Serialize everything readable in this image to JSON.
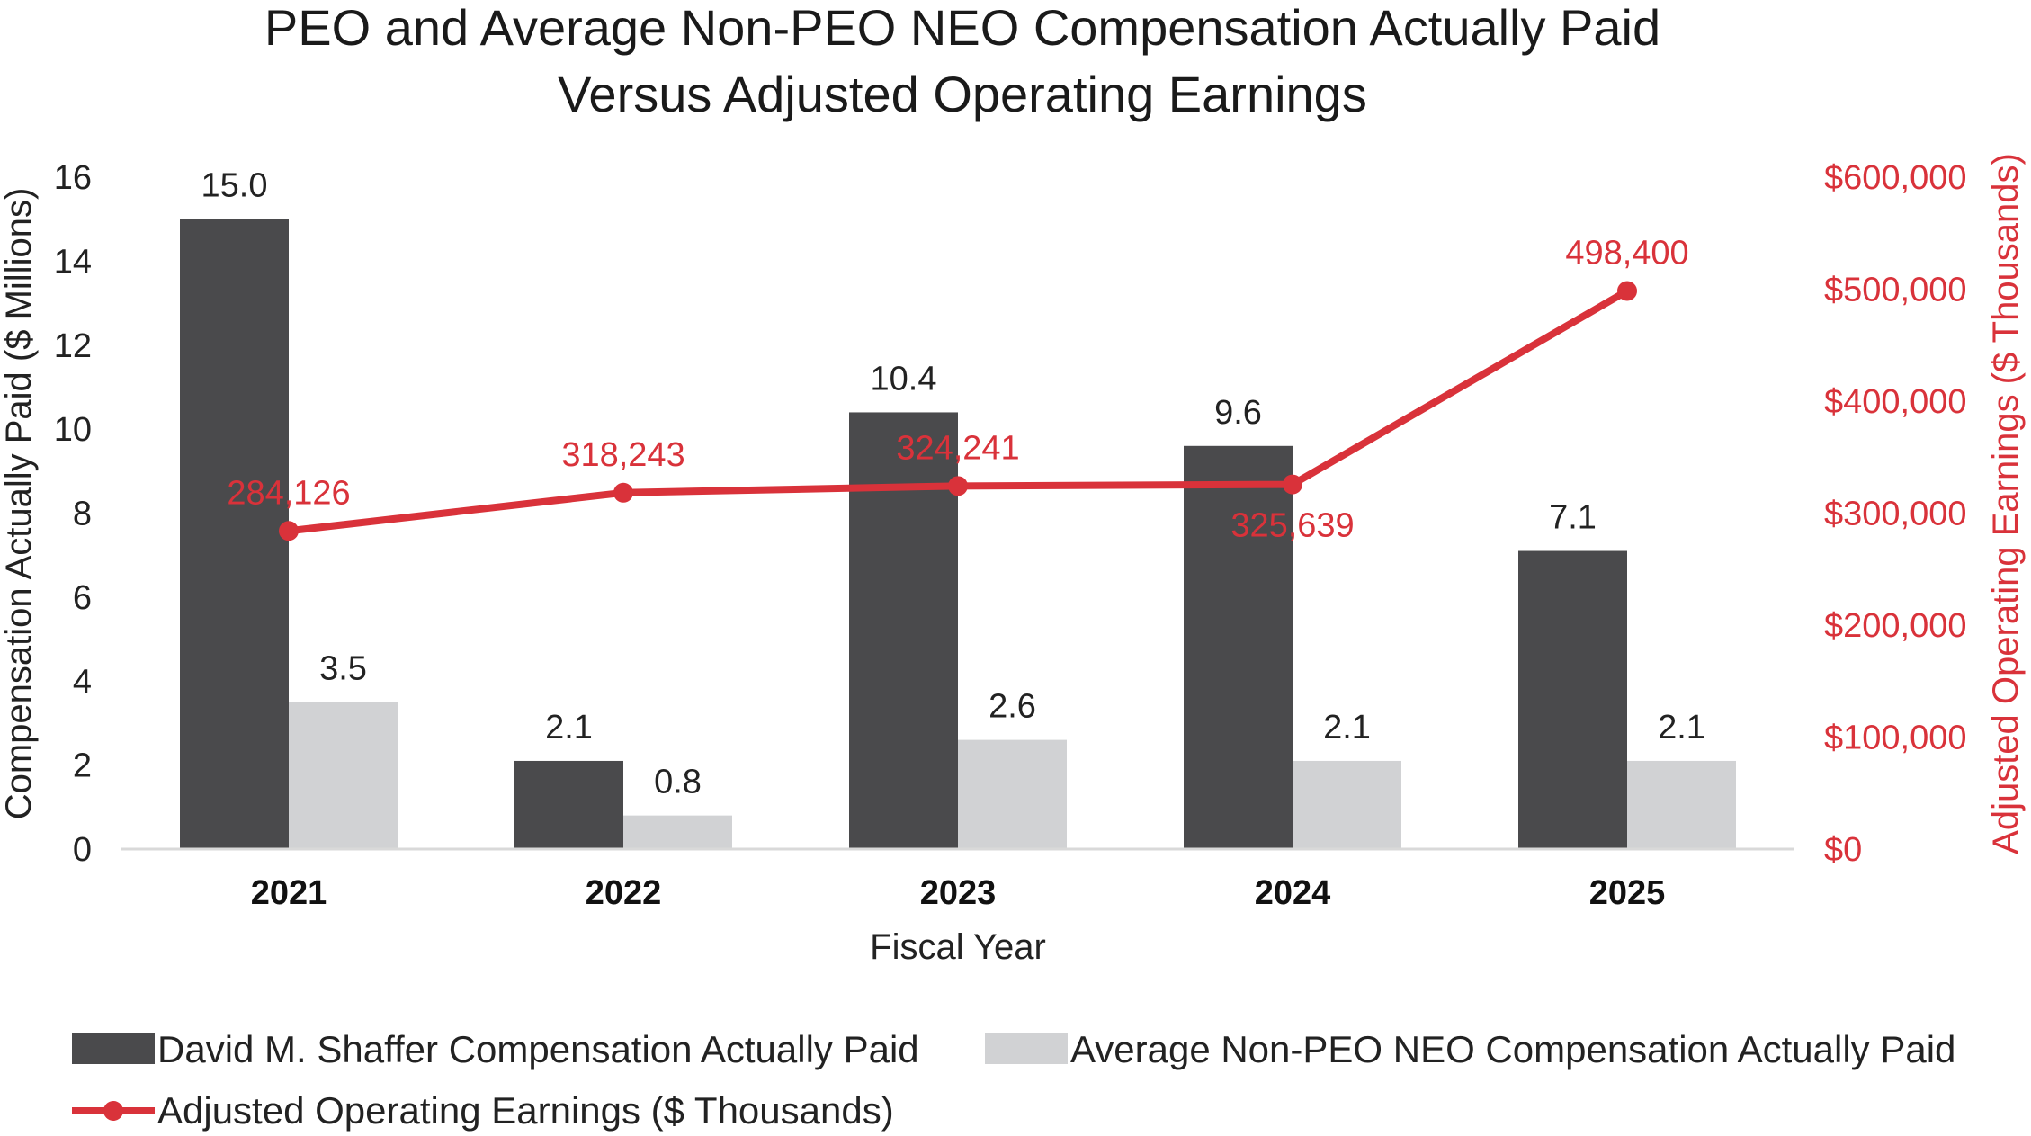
{
  "chart_data": {
    "type": "bar",
    "title": "PEO and Average Non-PEO NEO Compensation Actually Paid",
    "subtitle": "Versus Adjusted Operating Earnings",
    "xlabel": "Fiscal Year",
    "ylabel": "Compensation Actually Paid ($ Millions)",
    "y2label": "Adjusted Operating Earnings ($ Thousands)",
    "categories": [
      "2021",
      "2022",
      "2023",
      "2024",
      "2025"
    ],
    "ylim": [
      0,
      16
    ],
    "yticks": [
      "0",
      "2",
      "4",
      "6",
      "8",
      "10",
      "12",
      "14",
      "16"
    ],
    "y2lim": [
      0,
      600000
    ],
    "y2ticks": [
      "$0",
      "$100,000",
      "$200,000",
      "$300,000",
      "$400,000",
      "$500,000",
      "$600,000"
    ],
    "grid": false,
    "legend_position": "bottom",
    "series": [
      {
        "name": "David M. Shaffer Compensation Actually Paid",
        "kind": "bar",
        "axis": "left",
        "color": "#4a4a4c",
        "values": [
          15.0,
          2.1,
          10.4,
          9.6,
          7.1
        ],
        "labels": [
          "15.0",
          "2.1",
          "10.4",
          "9.6",
          "7.1"
        ]
      },
      {
        "name": "Average Non-PEO NEO Compensation Actually Paid",
        "kind": "bar",
        "axis": "left",
        "color": "#d1d2d4",
        "values": [
          3.5,
          0.8,
          2.6,
          2.1,
          2.1
        ],
        "labels": [
          "3.5",
          "0.8",
          "2.6",
          "2.1",
          "2.1"
        ]
      },
      {
        "name": "Adjusted Operating Earnings ($ Thousands)",
        "kind": "line",
        "axis": "right",
        "color": "#d9323a",
        "values": [
          284126,
          318243,
          324241,
          325639,
          498400
        ],
        "labels": [
          "284,126",
          "318,243",
          "324,241",
          "325,639",
          "498,400"
        ]
      }
    ]
  }
}
